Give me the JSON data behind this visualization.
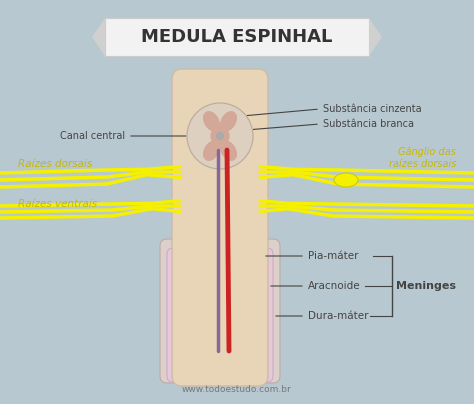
{
  "title": "MEDULA ESPINHAL",
  "bg_color": "#b8c8d0",
  "banner_color": "#f2f2f2",
  "spine_color": "#e8d5b8",
  "gray_matter_color": "#d4a898",
  "white_matter_color": "#ddd0c0",
  "arachnoid_color": "#e8c8d8",
  "dura_color": "#ddd0c8",
  "nerve_yellow": "#f5f000",
  "artery_red": "#cc2222",
  "vein_purple": "#886699",
  "label_dark": "#444444",
  "label_yellow": "#c8b800",
  "website": "www.todoestudo.com.br",
  "labels": {
    "substancia_cinzenta": "Substância cinzenta",
    "substancia_branca": "Substância branca",
    "canal_central": "Canal central",
    "raizes_dorsais": "Raízes dorsais",
    "raizes_ventrais": "Raízes ventrais",
    "ganglio": "Gânglio das\nraízes dorsais",
    "pia_mater": "Pia-máter",
    "aracnoide": "Aracnoide",
    "dura_mater": "Dura-máter",
    "meninges": "Meninges"
  }
}
